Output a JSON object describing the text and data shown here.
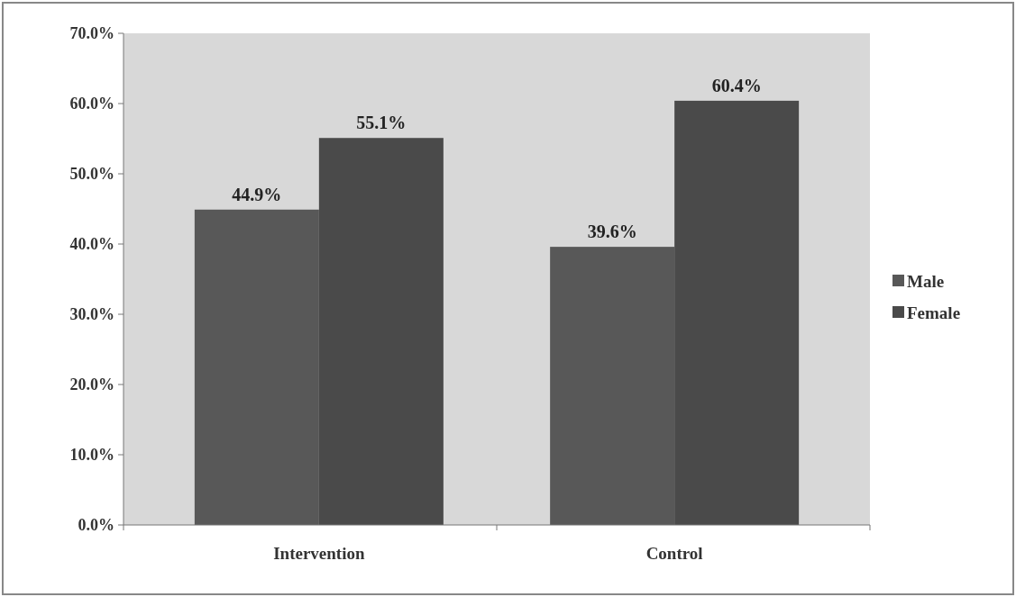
{
  "chart_data": {
    "type": "bar",
    "categories": [
      "Intervention",
      "Control"
    ],
    "series": [
      {
        "name": "Male",
        "color": "#585858",
        "values": [
          44.9,
          39.6
        ],
        "value_labels": [
          "44.9%",
          "39.6%"
        ]
      },
      {
        "name": "Female",
        "color": "#4a4a4a",
        "values": [
          55.1,
          60.4
        ],
        "value_labels": [
          "55.1%",
          "60.4%"
        ]
      }
    ],
    "ylim": [
      0,
      70
    ],
    "yticks": [
      {
        "value": 0,
        "label": "0.0%"
      },
      {
        "value": 10,
        "label": "10.0%"
      },
      {
        "value": 20,
        "label": "20.0%"
      },
      {
        "value": 30,
        "label": "30.0%"
      },
      {
        "value": 40,
        "label": "40.0%"
      },
      {
        "value": 50,
        "label": "50.0%"
      },
      {
        "value": 60,
        "label": "60.0%"
      },
      {
        "value": 70,
        "label": "70.0%"
      }
    ],
    "legend": "right"
  }
}
